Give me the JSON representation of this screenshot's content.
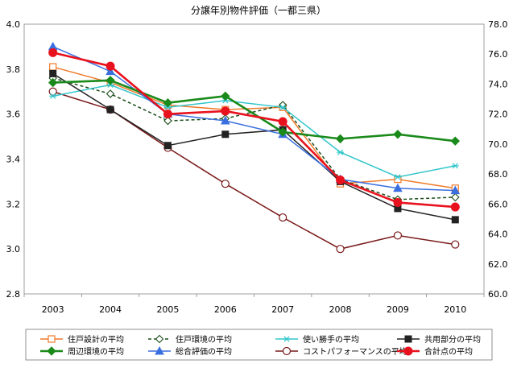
{
  "chart_data": {
    "type": "line",
    "title": "分譲年別物件評価（一都三県）",
    "categories": [
      "2003",
      "2004",
      "2005",
      "2006",
      "2007",
      "2008",
      "2009",
      "2010"
    ],
    "y_left": {
      "ylim": [
        2.8,
        4.0
      ],
      "ticks": [
        "2.8",
        "3.0",
        "3.2",
        "3.4",
        "3.6",
        "3.8",
        "4.0"
      ]
    },
    "y_right": {
      "ylim": [
        60.0,
        78.0
      ],
      "ticks": [
        "60.0",
        "62.0",
        "64.0",
        "66.0",
        "68.0",
        "70.0",
        "72.0",
        "74.0",
        "76.0",
        "78.0"
      ]
    },
    "grid": false,
    "legend_position": "bottom",
    "series": [
      {
        "name": "住戸設計の平均",
        "axis": "left",
        "color": "#f07a2a",
        "marker": "open-square",
        "dash": false,
        "values": [
          3.81,
          3.74,
          3.64,
          3.62,
          3.63,
          3.29,
          3.31,
          3.27
        ]
      },
      {
        "name": "住戸環境の平均",
        "axis": "left",
        "color": "#1a4d1a",
        "marker": "open-diamond",
        "dash": true,
        "values": [
          3.76,
          3.69,
          3.57,
          3.58,
          3.64,
          3.31,
          3.22,
          3.23
        ]
      },
      {
        "name": "使い勝手の平均",
        "axis": "left",
        "color": "#33c6cc",
        "marker": "asterisk",
        "dash": false,
        "values": [
          3.68,
          3.73,
          3.63,
          3.66,
          3.63,
          3.43,
          3.32,
          3.37
        ]
      },
      {
        "name": "共用部分の平均",
        "axis": "left",
        "color": "#222222",
        "marker": "filled-square",
        "dash": false,
        "values": [
          3.78,
          3.62,
          3.46,
          3.51,
          3.53,
          3.3,
          3.18,
          3.13
        ]
      },
      {
        "name": "周辺環境の平均",
        "axis": "left",
        "color": "#1a8a1a",
        "marker": "filled-diamond",
        "dash": false,
        "values": [
          3.74,
          3.75,
          3.65,
          3.68,
          3.52,
          3.49,
          3.51,
          3.48
        ]
      },
      {
        "name": "総合評価の平均",
        "axis": "left",
        "color": "#3a6fe0",
        "marker": "filled-triangle",
        "dash": false,
        "values": [
          3.9,
          3.79,
          3.6,
          3.57,
          3.51,
          3.31,
          3.27,
          3.26
        ]
      },
      {
        "name": "コストパフォーマンスの平均",
        "axis": "left",
        "color": "#7a1a1a",
        "marker": "open-circle",
        "dash": false,
        "values": [
          3.7,
          3.62,
          3.45,
          3.29,
          3.14,
          3.0,
          3.06,
          3.02
        ]
      },
      {
        "name": "合計点の平均",
        "axis": "right",
        "color": "#e8121e",
        "marker": "filled-circle",
        "dash": false,
        "values": [
          76.1,
          75.2,
          72.0,
          72.2,
          71.5,
          67.6,
          66.1,
          65.8
        ]
      }
    ]
  }
}
